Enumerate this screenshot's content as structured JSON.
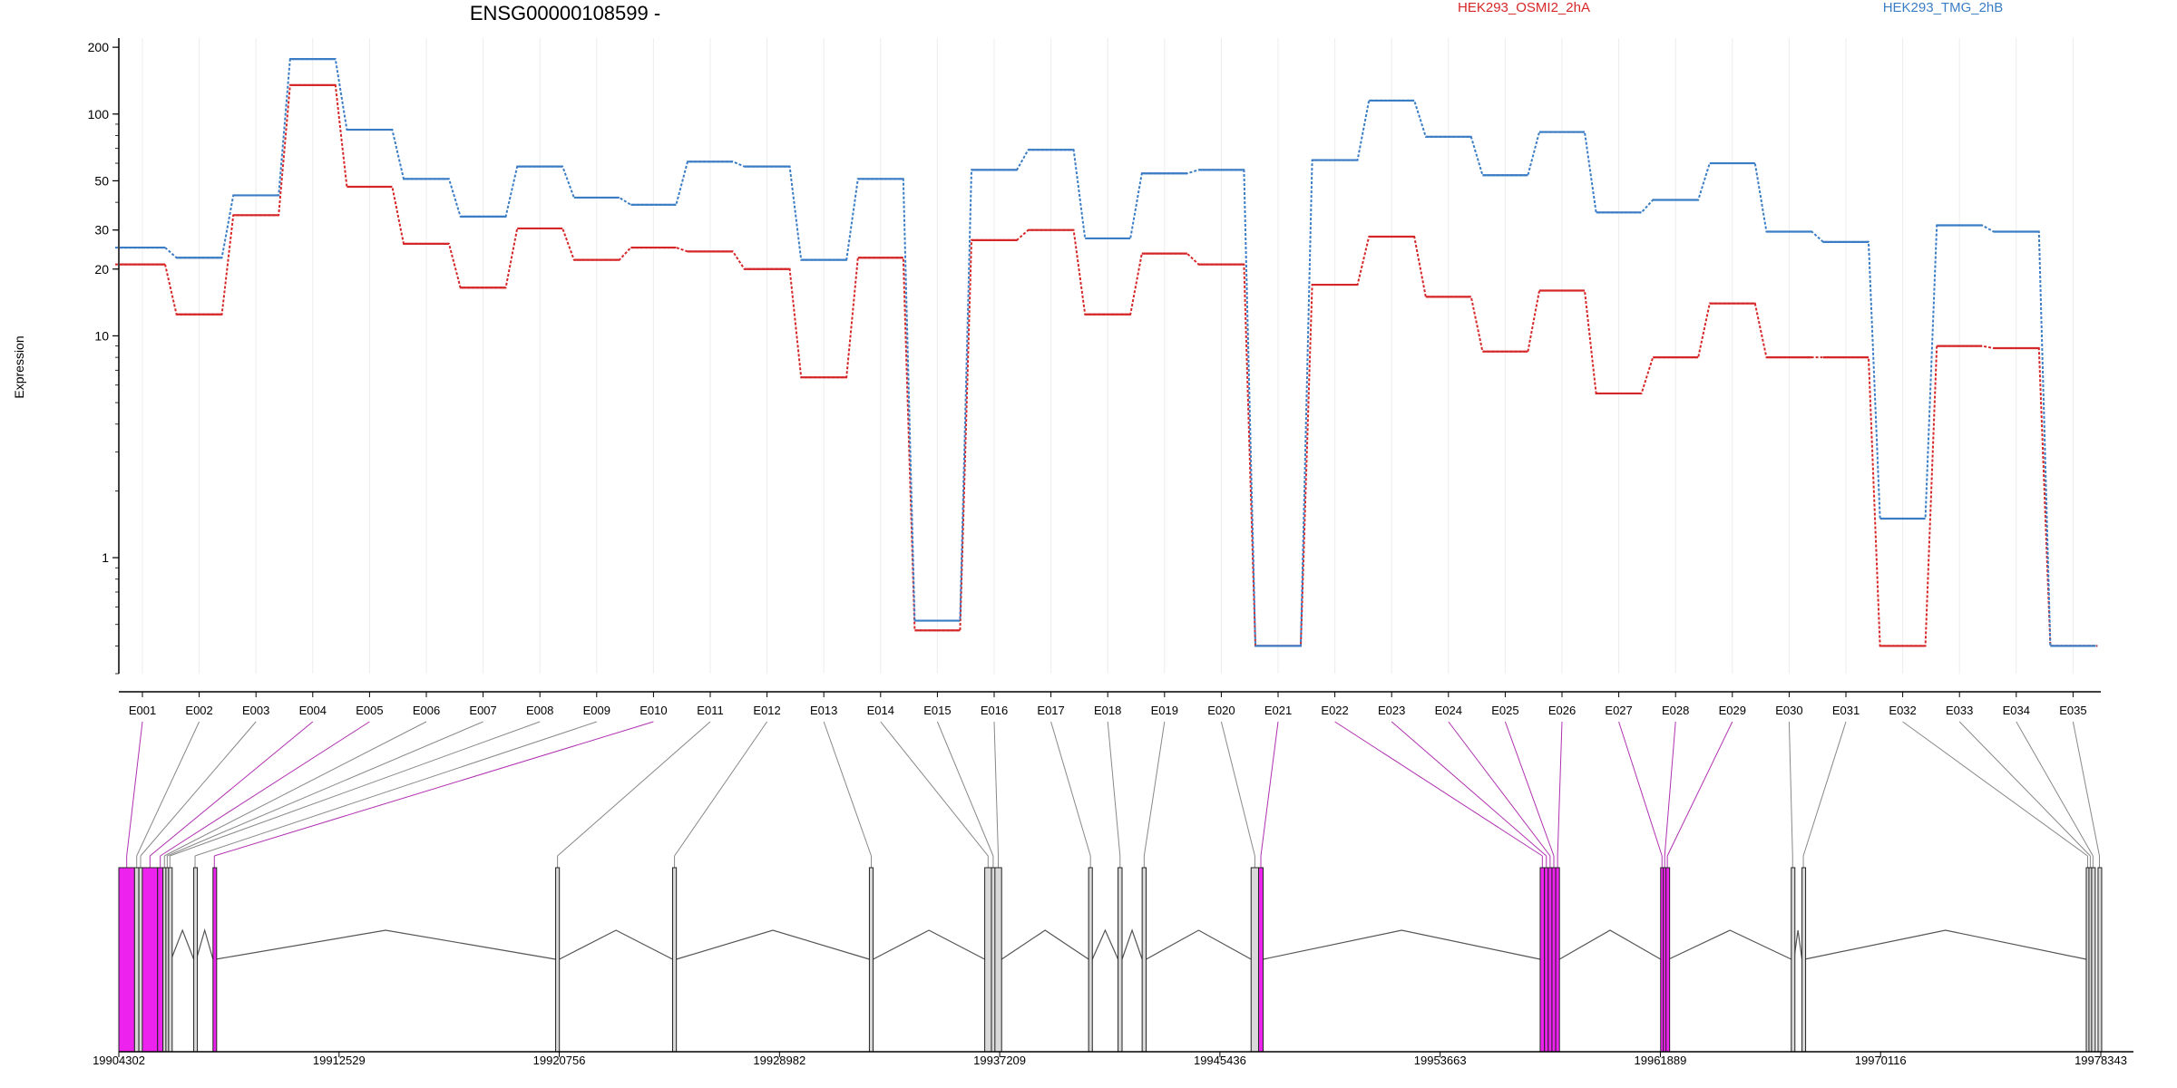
{
  "chart_data": {
    "type": "line",
    "title": "ENSG00000108599 -",
    "ylabel": "Expression",
    "yscale": "log",
    "ylim": [
      0.3,
      220
    ],
    "yticks": [
      1,
      10,
      20,
      30,
      50,
      100,
      200
    ],
    "categories": [
      "E001",
      "E002",
      "E003",
      "E004",
      "E005",
      "E006",
      "E007",
      "E008",
      "E009",
      "E010",
      "E011",
      "E012",
      "E013",
      "E014",
      "E015",
      "E016",
      "E017",
      "E018",
      "E019",
      "E020",
      "E021",
      "E022",
      "E023",
      "E024",
      "E025",
      "E026",
      "E027",
      "E028",
      "E029",
      "E030",
      "E031",
      "E032",
      "E033",
      "E034",
      "E035"
    ],
    "series": [
      {
        "name": "HEK293_OSMI2_2hA",
        "color": "#d62728",
        "values": [
          21,
          12.5,
          35,
          135,
          47,
          26,
          16.5,
          30.5,
          22,
          25,
          24,
          20,
          6.5,
          22.5,
          0.47,
          27,
          30,
          12.5,
          23.5,
          21,
          0.4,
          17,
          28,
          15,
          8.5,
          16,
          5.5,
          8,
          14,
          8,
          8,
          0.4,
          9,
          8.8,
          0.4
        ]
      },
      {
        "name": "HEK293_TMG_2hB",
        "color": "#3b7dc4",
        "values": [
          25,
          22.5,
          43,
          177,
          85,
          51,
          34.5,
          58,
          42,
          39,
          61,
          58,
          22,
          51,
          0.52,
          56,
          69,
          27.5,
          54,
          56,
          0.4,
          62,
          115,
          79,
          53,
          83,
          36,
          41,
          60,
          29.5,
          26.5,
          1.5,
          31.5,
          29.5,
          0.4
        ]
      }
    ],
    "exon_labels": [
      "E001",
      "E002",
      "E003",
      "E004",
      "E005",
      "E006",
      "E007",
      "E008",
      "E009",
      "E010",
      "E011",
      "E012",
      "E013",
      "E014",
      "E015",
      "E016",
      "E017",
      "E018",
      "E019",
      "E020",
      "E021",
      "E022",
      "E023",
      "E024",
      "E025",
      "E026",
      "E027",
      "E028",
      "E029",
      "E030",
      "E031",
      "E032",
      "E033",
      "E034",
      "E035"
    ],
    "genomic_ticks": [
      "19904302",
      "19912529",
      "19920756",
      "19928982",
      "19937209",
      "19945436",
      "19953663",
      "19961889",
      "19970116",
      "19978343"
    ],
    "gene_model": {
      "start": 19904302,
      "end": 19978343,
      "highlight_color": "#ee22ee",
      "exons": [
        {
          "id": "E001",
          "start": 19904302,
          "end": 19904890,
          "diff": true
        },
        {
          "id": "E002",
          "start": 19904890,
          "end": 19905050,
          "diff": false
        },
        {
          "id": "E003",
          "start": 19905050,
          "end": 19905180,
          "diff": false
        },
        {
          "id": "E004",
          "start": 19905180,
          "end": 19905750,
          "diff": true
        },
        {
          "id": "E005",
          "start": 19905750,
          "end": 19905950,
          "diff": true
        },
        {
          "id": "E006",
          "start": 19905950,
          "end": 19906060,
          "diff": false
        },
        {
          "id": "E007",
          "start": 19906060,
          "end": 19906160,
          "diff": false
        },
        {
          "id": "E008",
          "start": 19906160,
          "end": 19906260,
          "diff": false
        },
        {
          "id": "E009",
          "start": 19907100,
          "end": 19907200,
          "diff": false
        },
        {
          "id": "E010",
          "start": 19907820,
          "end": 19907920,
          "diff": true
        },
        {
          "id": "E011",
          "start": 19920620,
          "end": 19920760,
          "diff": false
        },
        {
          "id": "E012",
          "start": 19924990,
          "end": 19925130,
          "diff": false
        },
        {
          "id": "E013",
          "start": 19932340,
          "end": 19932480,
          "diff": false
        },
        {
          "id": "E014",
          "start": 19936650,
          "end": 19936900,
          "diff": false
        },
        {
          "id": "E015",
          "start": 19936900,
          "end": 19937030,
          "diff": false
        },
        {
          "id": "E016",
          "start": 19937030,
          "end": 19937280,
          "diff": false
        },
        {
          "id": "E017",
          "start": 19940530,
          "end": 19940670,
          "diff": false
        },
        {
          "id": "E018",
          "start": 19941630,
          "end": 19941780,
          "diff": false
        },
        {
          "id": "E019",
          "start": 19942530,
          "end": 19942680,
          "diff": false
        },
        {
          "id": "E020",
          "start": 19946600,
          "end": 19946880,
          "diff": false
        },
        {
          "id": "E021",
          "start": 19946880,
          "end": 19947050,
          "diff": true
        },
        {
          "id": "E022",
          "start": 19957400,
          "end": 19957560,
          "diff": true
        },
        {
          "id": "E023",
          "start": 19957560,
          "end": 19957700,
          "diff": true
        },
        {
          "id": "E024",
          "start": 19957700,
          "end": 19957840,
          "diff": true
        },
        {
          "id": "E025",
          "start": 19957840,
          "end": 19957980,
          "diff": true
        },
        {
          "id": "E026",
          "start": 19957980,
          "end": 19958120,
          "diff": true
        },
        {
          "id": "E027",
          "start": 19961900,
          "end": 19962000,
          "diff": true
        },
        {
          "id": "E028",
          "start": 19962000,
          "end": 19962100,
          "diff": true
        },
        {
          "id": "E029",
          "start": 19962100,
          "end": 19962200,
          "diff": true
        },
        {
          "id": "E030",
          "start": 19966780,
          "end": 19966880,
          "diff": false
        },
        {
          "id": "E031",
          "start": 19967180,
          "end": 19967280,
          "diff": false
        },
        {
          "id": "E032",
          "start": 19977800,
          "end": 19977900,
          "diff": false
        },
        {
          "id": "E033",
          "start": 19977900,
          "end": 19978000,
          "diff": false
        },
        {
          "id": "E034",
          "start": 19978000,
          "end": 19978100,
          "diff": false
        },
        {
          "id": "E035",
          "start": 19978240,
          "end": 19978343,
          "diff": false
        }
      ]
    }
  }
}
